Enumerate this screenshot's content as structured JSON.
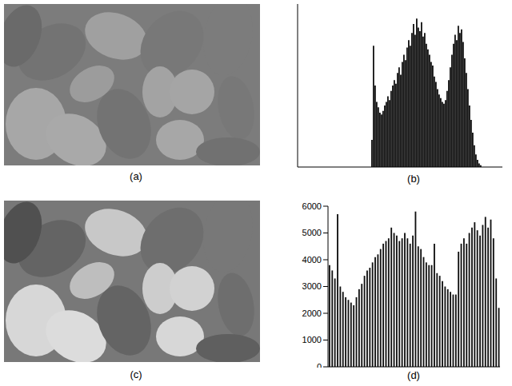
{
  "chart_data": [
    {
      "type": "histogram",
      "title": "(b)",
      "bins": [
        92,
        94,
        96,
        98,
        100,
        102,
        104,
        106,
        108,
        110,
        112,
        114,
        116,
        118,
        120,
        122,
        124,
        126,
        128,
        130,
        132,
        134,
        136,
        138,
        140,
        142,
        144,
        146,
        148,
        150,
        152,
        154,
        156,
        158,
        160,
        162,
        164,
        166,
        168,
        170,
        172,
        174,
        176,
        178,
        180,
        182,
        184,
        186,
        188,
        190,
        192,
        194,
        196,
        198,
        200,
        202,
        204,
        206,
        208,
        210,
        212,
        214,
        216,
        218,
        220,
        222,
        224,
        226,
        228,
        230
      ],
      "counts": [
        1500,
        6700,
        4500,
        3600,
        3300,
        3000,
        2900,
        3100,
        3400,
        3600,
        3900,
        3700,
        4200,
        4500,
        4800,
        4600,
        5200,
        5500,
        5100,
        5800,
        6200,
        5900,
        6600,
        7000,
        6700,
        7400,
        7900,
        7300,
        8200,
        7700,
        7500,
        8000,
        7200,
        7400,
        6800,
        6500,
        6200,
        5800,
        5600,
        5000,
        4700,
        4300,
        4000,
        3800,
        3600,
        3500,
        3700,
        4200,
        4800,
        5500,
        6200,
        6800,
        7300,
        7000,
        7800,
        7400,
        7600,
        6900,
        6000,
        5200,
        4300,
        3400,
        2600,
        1900,
        1200,
        700,
        400,
        200,
        100
      ],
      "xlim": [
        0,
        256
      ],
      "ylim": [
        0,
        9000
      ],
      "tick_labels": false,
      "color": "#111111"
    },
    {
      "type": "histogram",
      "title": "(d)",
      "bins": [
        0,
        4,
        8,
        12,
        16,
        20,
        24,
        28,
        32,
        36,
        40,
        44,
        48,
        52,
        56,
        60,
        64,
        68,
        72,
        76,
        80,
        84,
        88,
        92,
        96,
        100,
        104,
        108,
        112,
        116,
        120,
        124,
        128,
        132,
        136,
        140,
        144,
        148,
        152,
        156,
        160,
        164,
        168,
        172,
        176,
        180,
        184,
        188,
        192,
        196,
        200,
        204,
        208,
        212,
        216,
        220,
        224,
        228,
        232,
        236,
        240,
        244,
        248,
        252,
        256
      ],
      "counts": [
        3800,
        3600,
        3300,
        5700,
        3000,
        2800,
        2600,
        2500,
        2400,
        2300,
        2600,
        2900,
        3100,
        3400,
        3600,
        3700,
        3900,
        4100,
        4200,
        4400,
        4600,
        4700,
        4800,
        5200,
        5000,
        4900,
        4700,
        4800,
        5000,
        4800,
        4600,
        4900,
        5800,
        4500,
        4400,
        4100,
        3900,
        3800,
        3800,
        4600,
        3500,
        3400,
        3200,
        3000,
        2900,
        2800,
        2700,
        2700,
        4300,
        4600,
        4800,
        4600,
        5000,
        5200,
        5400,
        5100,
        4900,
        5300,
        5600,
        5200,
        5500,
        4800,
        3300,
        2200
      ],
      "xlim": [
        0,
        256
      ],
      "ylim": [
        0,
        6000
      ],
      "yticks": [
        0,
        1000,
        2000,
        3000,
        4000,
        5000,
        6000
      ],
      "tick_labels": "y",
      "color": "#111111"
    }
  ],
  "images": [
    {
      "label": "(a)"
    },
    {
      "label": "(c)"
    }
  ]
}
